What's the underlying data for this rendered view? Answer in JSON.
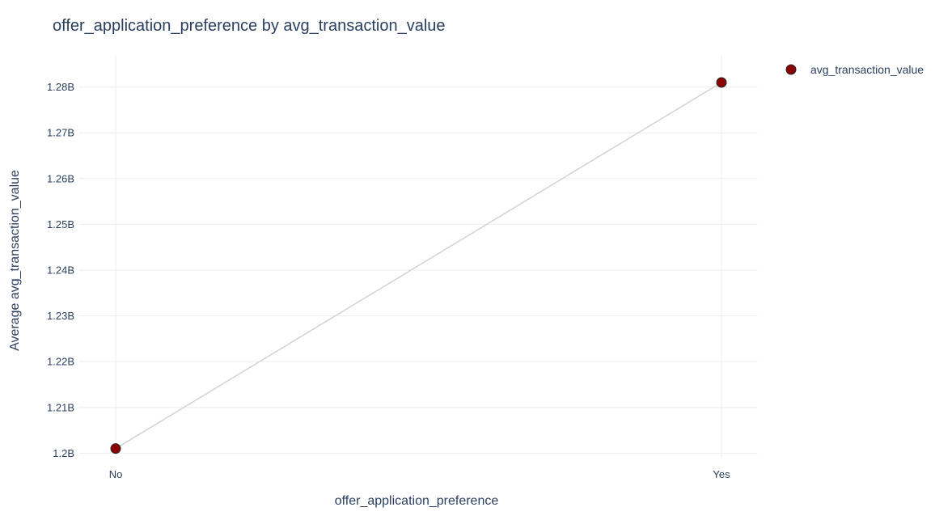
{
  "chart_data": {
    "type": "line",
    "title": "offer_application_preference by avg_transaction_value",
    "xlabel": "offer_application_preference",
    "ylabel": "Average avg_transaction_value",
    "categories": [
      "No",
      "Yes"
    ],
    "series": [
      {
        "name": "avg_transaction_value",
        "values": [
          1201000000,
          1281000000
        ],
        "marker_color": "#8b0000",
        "marker_outline": "#2a2a2a",
        "line_color": "#d3d3d3"
      }
    ],
    "ylim": [
      1199000000,
      1287000000
    ],
    "yticks": [
      1200000000,
      1210000000,
      1220000000,
      1230000000,
      1240000000,
      1250000000,
      1260000000,
      1270000000,
      1280000000
    ],
    "ytick_labels": [
      "1.2B",
      "1.21B",
      "1.22B",
      "1.23B",
      "1.24B",
      "1.25B",
      "1.26B",
      "1.27B",
      "1.28B"
    ],
    "grid": true,
    "legend_position": "top-right"
  }
}
